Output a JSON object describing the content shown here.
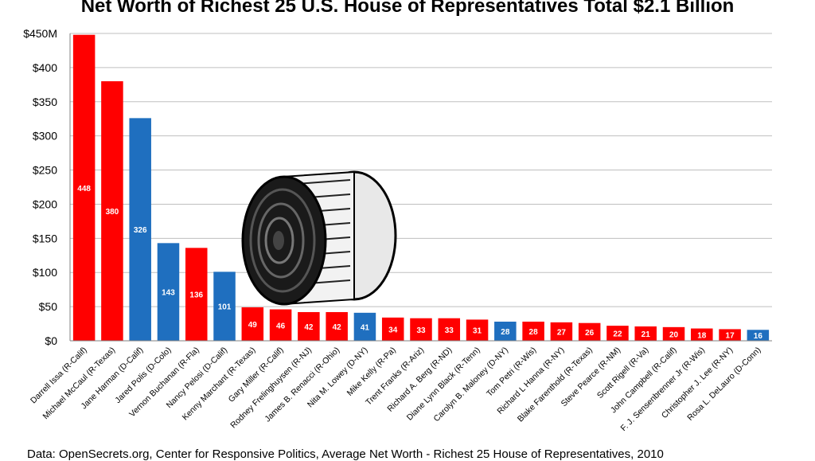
{
  "title": "Net Worth of Richest 25 U.S. House of Representatives Total $2.1 Billion",
  "footer": "Data: OpenSecrets.org, Center for Responsive Politics, Average Net Worth - Richest 25 House of Representatives, 2010",
  "colors": {
    "republican": "#ff0000",
    "democrat": "#1f6fbf",
    "grid": "#bfbfbf"
  },
  "chart_data": {
    "type": "bar",
    "ylim": [
      0,
      450
    ],
    "yticks": [
      0,
      50,
      100,
      150,
      200,
      250,
      300,
      350,
      400,
      450
    ],
    "ytick_labels": [
      "$0",
      "$50",
      "$100",
      "$150",
      "$200",
      "$250",
      "$300",
      "$350",
      "$400",
      "$450M"
    ],
    "grid": true,
    "categories": [
      "Darrell Issa (R-Calif)",
      "Michael McCaul (R-Texas)",
      "Jane Harman (D-Calif)",
      "Jared Polis (D-Colo)",
      "Vernon Buchanan (R-Fla)",
      "Nancy Pelosi (D-Calif)",
      "Kenny Marchant (R-Texas)",
      "Gary Miller (R-Calif)",
      "Rodney Frelinghuysen (R-NJ)",
      "James B. Renacci (R-Ohio)",
      "Nita M. Lowey (D-NY)",
      "Mike Kelly (R-Pa)",
      "Trent Franks (R-Ariz)",
      "Richard A. Berg (R-ND)",
      "Diane Lynn Black (R-Tenn)",
      "Carolyn B. Maloney (D-NY)",
      "Tom Petri (R-Wis)",
      "Richard L Hanna (R-NY)",
      "Blake Farenthold (R-Texas)",
      "Steve Pearce (R-NM)",
      "Scott Rigell (R-Va)",
      "John Campbell (R-Calif)",
      "F. J. Sensenbrenner Jr (R-Wis)",
      "Christopher J. Lee (R-NY)",
      "Rosa L. DeLauro (D-Conn)"
    ],
    "values": [
      448,
      380,
      326,
      143,
      136,
      101,
      49,
      46,
      42,
      42,
      41,
      34,
      33,
      33,
      31,
      28,
      28,
      27,
      26,
      22,
      21,
      20,
      18,
      17,
      16
    ],
    "value_labels": [
      "448",
      "380",
      "326",
      "143",
      "136",
      "101",
      "49",
      "46",
      "42",
      "42",
      "41",
      "34",
      "33",
      "33",
      "31",
      "28",
      "28",
      "27",
      "26",
      "22",
      "21",
      "20",
      "18",
      "17",
      "16"
    ],
    "party": [
      "R",
      "R",
      "D",
      "D",
      "R",
      "D",
      "R",
      "R",
      "R",
      "R",
      "D",
      "R",
      "R",
      "R",
      "R",
      "D",
      "R",
      "R",
      "R",
      "R",
      "R",
      "R",
      "R",
      "R",
      "D"
    ]
  }
}
